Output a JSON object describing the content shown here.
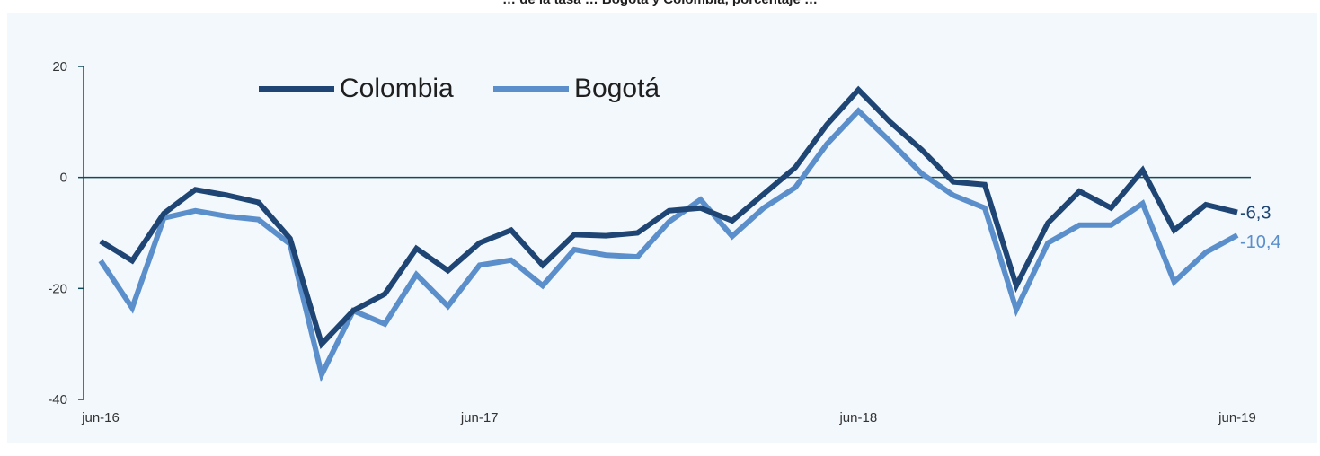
{
  "chart_data": {
    "type": "line",
    "title": "… de la tasa … Bogotá y Colombia, porcentaje …",
    "xlabel": "",
    "ylabel": "",
    "ylim": [
      -40,
      20
    ],
    "yticks": [
      20,
      0,
      -20,
      -40
    ],
    "xtick_labels": [
      "jun-16",
      "jun-17",
      "jun-18",
      "jun-19"
    ],
    "grid": false,
    "legend_position": "top-left",
    "colors": {
      "colombia": "#1e4574",
      "bogota": "#5b8fcb",
      "axis": "#0f4b5a",
      "zero_line": "#0f4b5a"
    },
    "x": [
      "jun-16",
      "jul-16",
      "ago-16",
      "sep-16",
      "oct-16",
      "nov-16",
      "dic-16",
      "ene-17",
      "feb-17",
      "mar-17",
      "abr-17",
      "may-17",
      "jun-17",
      "jul-17",
      "ago-17",
      "sep-17",
      "oct-17",
      "nov-17",
      "dic-17",
      "ene-18",
      "feb-18",
      "mar-18",
      "abr-18",
      "may-18",
      "jun-18",
      "jul-18",
      "ago-18",
      "sep-18",
      "oct-18",
      "nov-18",
      "dic-18",
      "ene-19",
      "feb-19",
      "mar-19",
      "abr-19",
      "may-19",
      "jun-19"
    ],
    "series": [
      {
        "name": "Colombia",
        "values": [
          -11.5,
          -15,
          -6.5,
          -2.2,
          -3.2,
          -4.5,
          -11,
          -30,
          -24,
          -21,
          -12.8,
          -16.8,
          -11.8,
          -9.5,
          -15.8,
          -10.3,
          -10.5,
          -10,
          -6,
          -5.5,
          -7.8,
          -3,
          1.8,
          9.5,
          15.8,
          10,
          5,
          -0.8,
          -1.3,
          -19.5,
          -8.2,
          -2.5,
          -5.5,
          1.3,
          -9.5,
          -4.9,
          -6.3
        ]
      },
      {
        "name": "Bogotá",
        "values": [
          -15,
          -23.5,
          -7.3,
          -6,
          -7,
          -7.6,
          -12,
          -35.5,
          -24,
          -26.4,
          -17.5,
          -23.2,
          -15.8,
          -14.9,
          -19.5,
          -13,
          -14,
          -14.3,
          -8,
          -4,
          -10.6,
          -5.5,
          -1.8,
          6,
          12,
          6.5,
          0.7,
          -3.2,
          -5.5,
          -23.8,
          -11.8,
          -8.6,
          -8.6,
          -4.7,
          -18.8,
          -13.5,
          -10.4
        ]
      }
    ],
    "end_labels": {
      "colombia": "-6,3",
      "bogota": "-10,4"
    }
  }
}
